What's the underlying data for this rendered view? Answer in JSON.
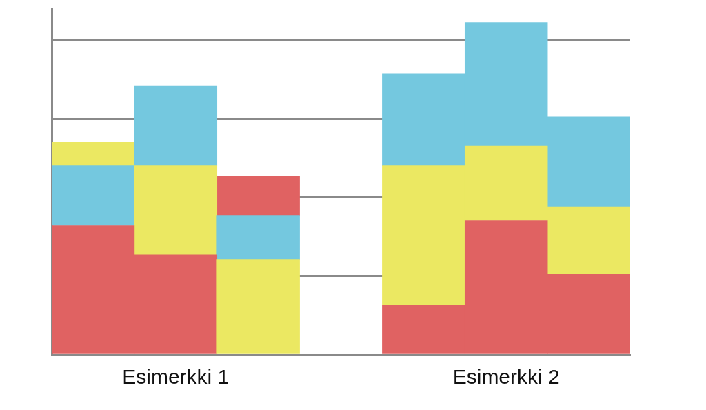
{
  "chart_data": {
    "type": "bar",
    "stacked": true,
    "grid": true,
    "tick_labels": "x",
    "categories": [
      null,
      "Esimerkki 1",
      null,
      null,
      null,
      "Esimerkki 2",
      null
    ],
    "series": [
      {
        "colors": [
          "#e06262",
          "#e06262",
          "#ebe862",
          null,
          "#e06262",
          "#e06262",
          "#e06262"
        ],
        "values": [
          1.64,
          1.27,
          1.21,
          null,
          0.63,
          1.71,
          1.02
        ]
      },
      {
        "colors": [
          "#74c8df",
          "#ebe862",
          "#74c8df",
          null,
          "#ebe862",
          "#ebe862",
          "#ebe862"
        ],
        "values": [
          0.76,
          1.13,
          0.56,
          null,
          1.77,
          0.94,
          0.86
        ]
      },
      {
        "colors": [
          "#ebe862",
          "#74c8df",
          "#e06262",
          null,
          "#74c8df",
          "#74c8df",
          "#74c8df"
        ],
        "values": [
          0.3,
          1.01,
          0.5,
          null,
          1.17,
          1.57,
          1.14
        ]
      }
    ],
    "ylim": [
      0,
      4.4
    ],
    "yticks": [
      0,
      1,
      2,
      3,
      4
    ]
  }
}
